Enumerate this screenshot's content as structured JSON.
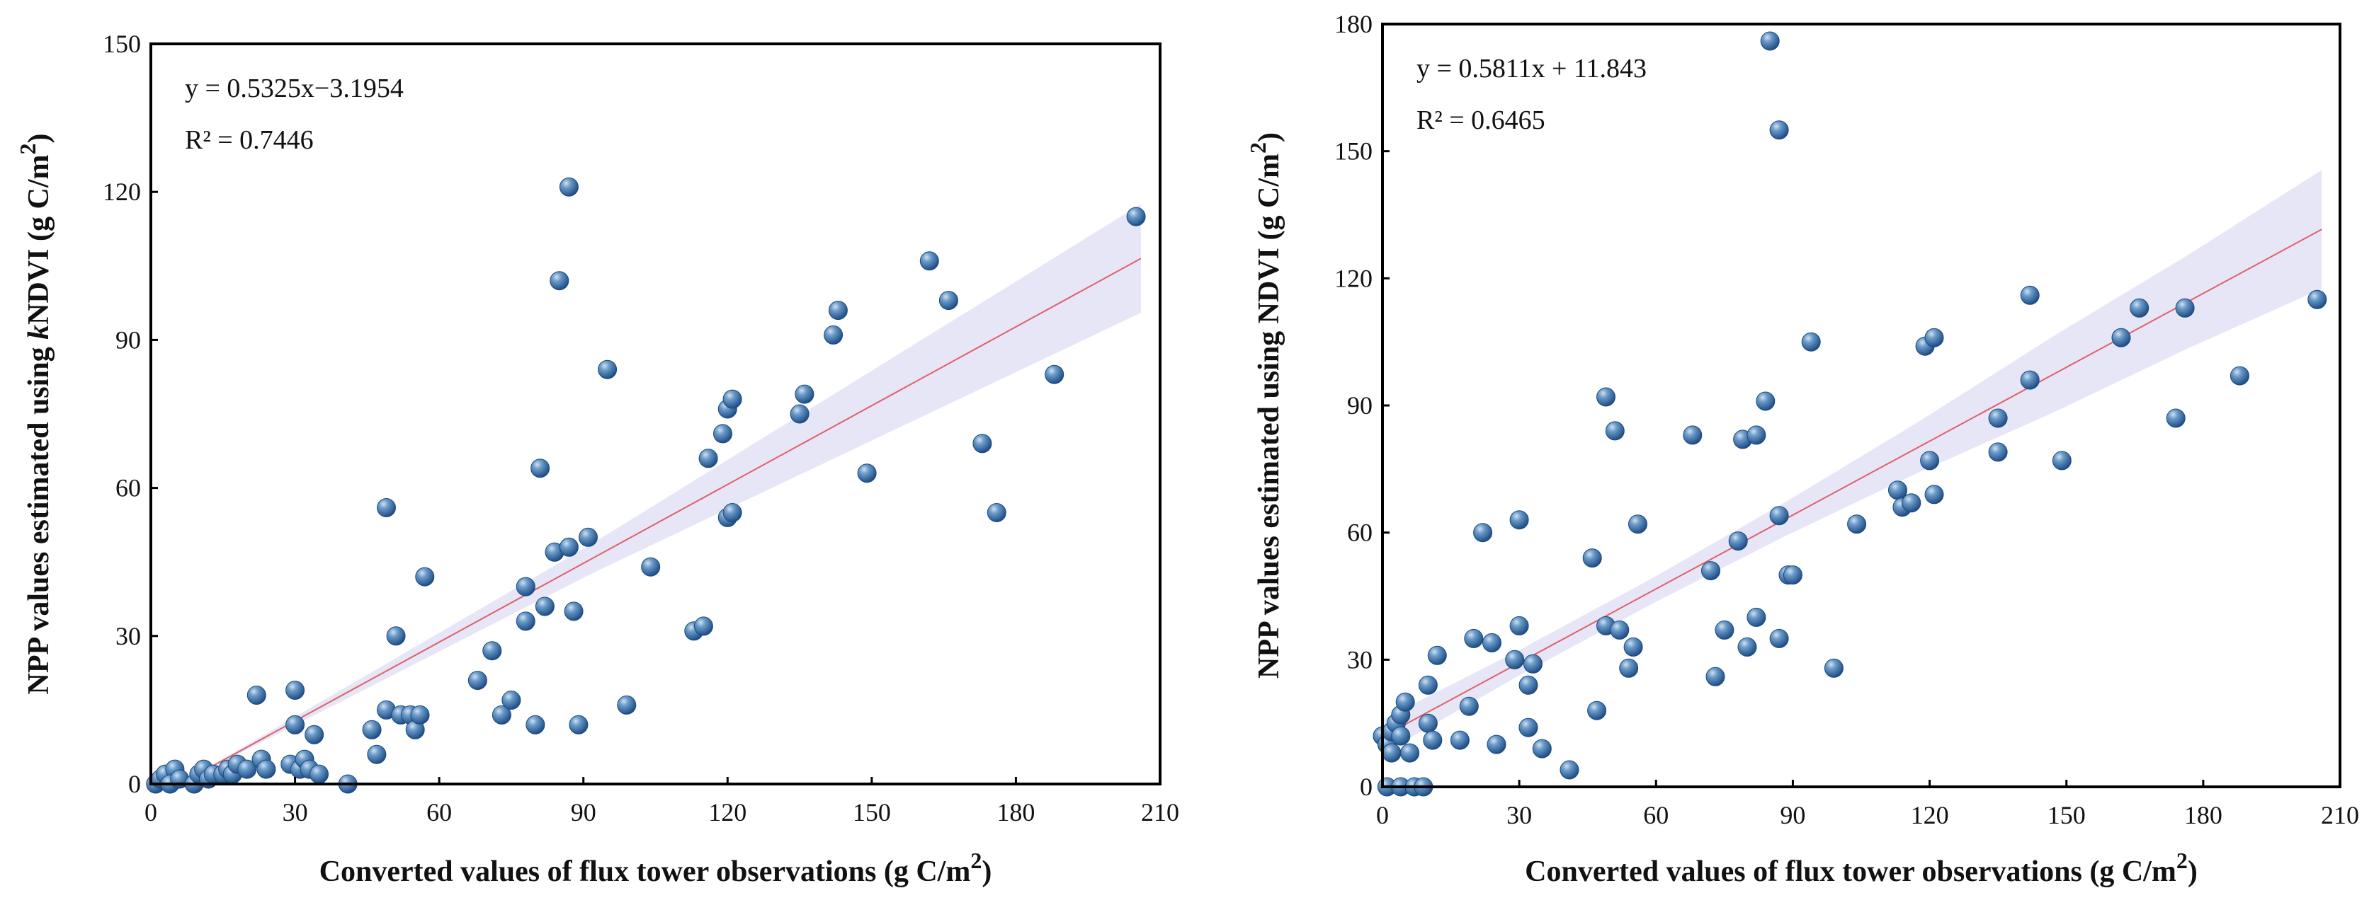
{
  "chart_data": [
    {
      "type": "scatter",
      "panel": "left",
      "xlabel": "Converted values of flux tower observations (g C/m",
      "xlabel_sup": "2",
      "xlabel_end": ")",
      "ylabel_pre": "NPP values estimated using ",
      "ylabel_italic": "k",
      "ylabel_mid": "NDVI (g C/m",
      "ylabel_sup": "2",
      "ylabel_end": ")",
      "xlim": [
        0,
        210
      ],
      "ylim": [
        0,
        150
      ],
      "xticks": [
        "0",
        "30",
        "60",
        "90",
        "120",
        "150",
        "180",
        "210"
      ],
      "yticks": [
        "0",
        "30",
        "60",
        "90",
        "120",
        "150"
      ],
      "equation": "y = 0.5325x−3.1954",
      "r2": "R² = 0.7446",
      "fit": {
        "slope": 0.5325,
        "intercept": -3.1954,
        "x_range": [
          6,
          206
        ]
      },
      "band_halfwidth": [
        0,
        1,
        2,
        3,
        5,
        7,
        9,
        11
      ],
      "points": [
        [
          1,
          0
        ],
        [
          2,
          1
        ],
        [
          3,
          2
        ],
        [
          5,
          3
        ],
        [
          4,
          0
        ],
        [
          6,
          1
        ],
        [
          9,
          0
        ],
        [
          10,
          2
        ],
        [
          11,
          3
        ],
        [
          12,
          1
        ],
        [
          13,
          2
        ],
        [
          15,
          2
        ],
        [
          16,
          3
        ],
        [
          17,
          2
        ],
        [
          18,
          4
        ],
        [
          20,
          3
        ],
        [
          22,
          18
        ],
        [
          23,
          5
        ],
        [
          24,
          3
        ],
        [
          29,
          4
        ],
        [
          30,
          12
        ],
        [
          30,
          19
        ],
        [
          31,
          3
        ],
        [
          32,
          5
        ],
        [
          33,
          3
        ],
        [
          34,
          10
        ],
        [
          35,
          2
        ],
        [
          41,
          0
        ],
        [
          46,
          11
        ],
        [
          47,
          6
        ],
        [
          49,
          56
        ],
        [
          49,
          15
        ],
        [
          51,
          30
        ],
        [
          52,
          14
        ],
        [
          54,
          14
        ],
        [
          55,
          11
        ],
        [
          56,
          14
        ],
        [
          57,
          42
        ],
        [
          68,
          21
        ],
        [
          71,
          27
        ],
        [
          73,
          14
        ],
        [
          75,
          17
        ],
        [
          78,
          33
        ],
        [
          78,
          40
        ],
        [
          80,
          12
        ],
        [
          81,
          64
        ],
        [
          82,
          36
        ],
        [
          84,
          47
        ],
        [
          85,
          102
        ],
        [
          87,
          48
        ],
        [
          87,
          121
        ],
        [
          88,
          35
        ],
        [
          89,
          12
        ],
        [
          91,
          50
        ],
        [
          95,
          84
        ],
        [
          99,
          16
        ],
        [
          104,
          44
        ],
        [
          113,
          31
        ],
        [
          115,
          32
        ],
        [
          116,
          66
        ],
        [
          119,
          71
        ],
        [
          120,
          54
        ],
        [
          120,
          76
        ],
        [
          121,
          55
        ],
        [
          121,
          78
        ],
        [
          135,
          75
        ],
        [
          136,
          79
        ],
        [
          142,
          91
        ],
        [
          143,
          96
        ],
        [
          149,
          63
        ],
        [
          162,
          106
        ],
        [
          166,
          98
        ],
        [
          173,
          69
        ],
        [
          176,
          55
        ],
        [
          188,
          83
        ],
        [
          205,
          115
        ]
      ]
    },
    {
      "type": "scatter",
      "panel": "right",
      "xlabel": "Converted values of flux tower observations (g C/m",
      "xlabel_sup": "2",
      "xlabel_end": ")",
      "ylabel_pre": "NPP values estimated using NDVI (g C/m",
      "ylabel_italic": "",
      "ylabel_mid": "",
      "ylabel_sup": "2",
      "ylabel_end": ")",
      "xlim": [
        0,
        210
      ],
      "ylim": [
        0,
        180
      ],
      "xticks": [
        "0",
        "30",
        "60",
        "90",
        "120",
        "150",
        "180",
        "210"
      ],
      "yticks": [
        "0",
        "30",
        "60",
        "90",
        "120",
        "150",
        "180"
      ],
      "equation": "y = 0.5811x + 11.843",
      "r2": "R² = 0.6465",
      "fit": {
        "slope": 0.5811,
        "intercept": 11.843,
        "x_range": [
          0,
          206
        ]
      },
      "band_halfwidth": [
        4,
        3,
        3,
        4,
        6,
        9,
        11,
        14
      ],
      "points": [
        [
          0,
          12
        ],
        [
          1,
          10
        ],
        [
          1,
          0
        ],
        [
          2,
          13
        ],
        [
          2,
          8
        ],
        [
          3,
          15
        ],
        [
          4,
          12
        ],
        [
          4,
          17
        ],
        [
          4,
          0
        ],
        [
          5,
          20
        ],
        [
          6,
          8
        ],
        [
          7,
          0
        ],
        [
          9,
          0
        ],
        [
          10,
          24
        ],
        [
          10,
          15
        ],
        [
          11,
          11
        ],
        [
          12,
          31
        ],
        [
          17,
          11
        ],
        [
          19,
          19
        ],
        [
          20,
          35
        ],
        [
          22,
          60
        ],
        [
          24,
          34
        ],
        [
          25,
          10
        ],
        [
          29,
          30
        ],
        [
          30,
          38
        ],
        [
          30,
          63
        ],
        [
          32,
          24
        ],
        [
          32,
          14
        ],
        [
          33,
          29
        ],
        [
          35,
          9
        ],
        [
          41,
          4
        ],
        [
          46,
          54
        ],
        [
          47,
          18
        ],
        [
          49,
          92
        ],
        [
          49,
          38
        ],
        [
          51,
          84
        ],
        [
          52,
          37
        ],
        [
          54,
          28
        ],
        [
          55,
          33
        ],
        [
          56,
          62
        ],
        [
          68,
          83
        ],
        [
          72,
          51
        ],
        [
          73,
          26
        ],
        [
          75,
          37
        ],
        [
          78,
          58
        ],
        [
          79,
          82
        ],
        [
          80,
          33
        ],
        [
          82,
          83
        ],
        [
          82,
          40
        ],
        [
          84,
          91
        ],
        [
          85,
          176
        ],
        [
          87,
          155
        ],
        [
          87,
          64
        ],
        [
          87,
          35
        ],
        [
          89,
          50
        ],
        [
          90,
          50
        ],
        [
          94,
          105
        ],
        [
          99,
          28
        ],
        [
          104,
          62
        ],
        [
          113,
          70
        ],
        [
          114,
          66
        ],
        [
          116,
          67
        ],
        [
          119,
          104
        ],
        [
          120,
          77
        ],
        [
          121,
          106
        ],
        [
          121,
          69
        ],
        [
          135,
          79
        ],
        [
          135,
          87
        ],
        [
          142,
          96
        ],
        [
          142,
          116
        ],
        [
          149,
          77
        ],
        [
          162,
          106
        ],
        [
          166,
          113
        ],
        [
          174,
          87
        ],
        [
          176,
          113
        ],
        [
          188,
          97
        ],
        [
          205,
          115
        ]
      ]
    }
  ]
}
